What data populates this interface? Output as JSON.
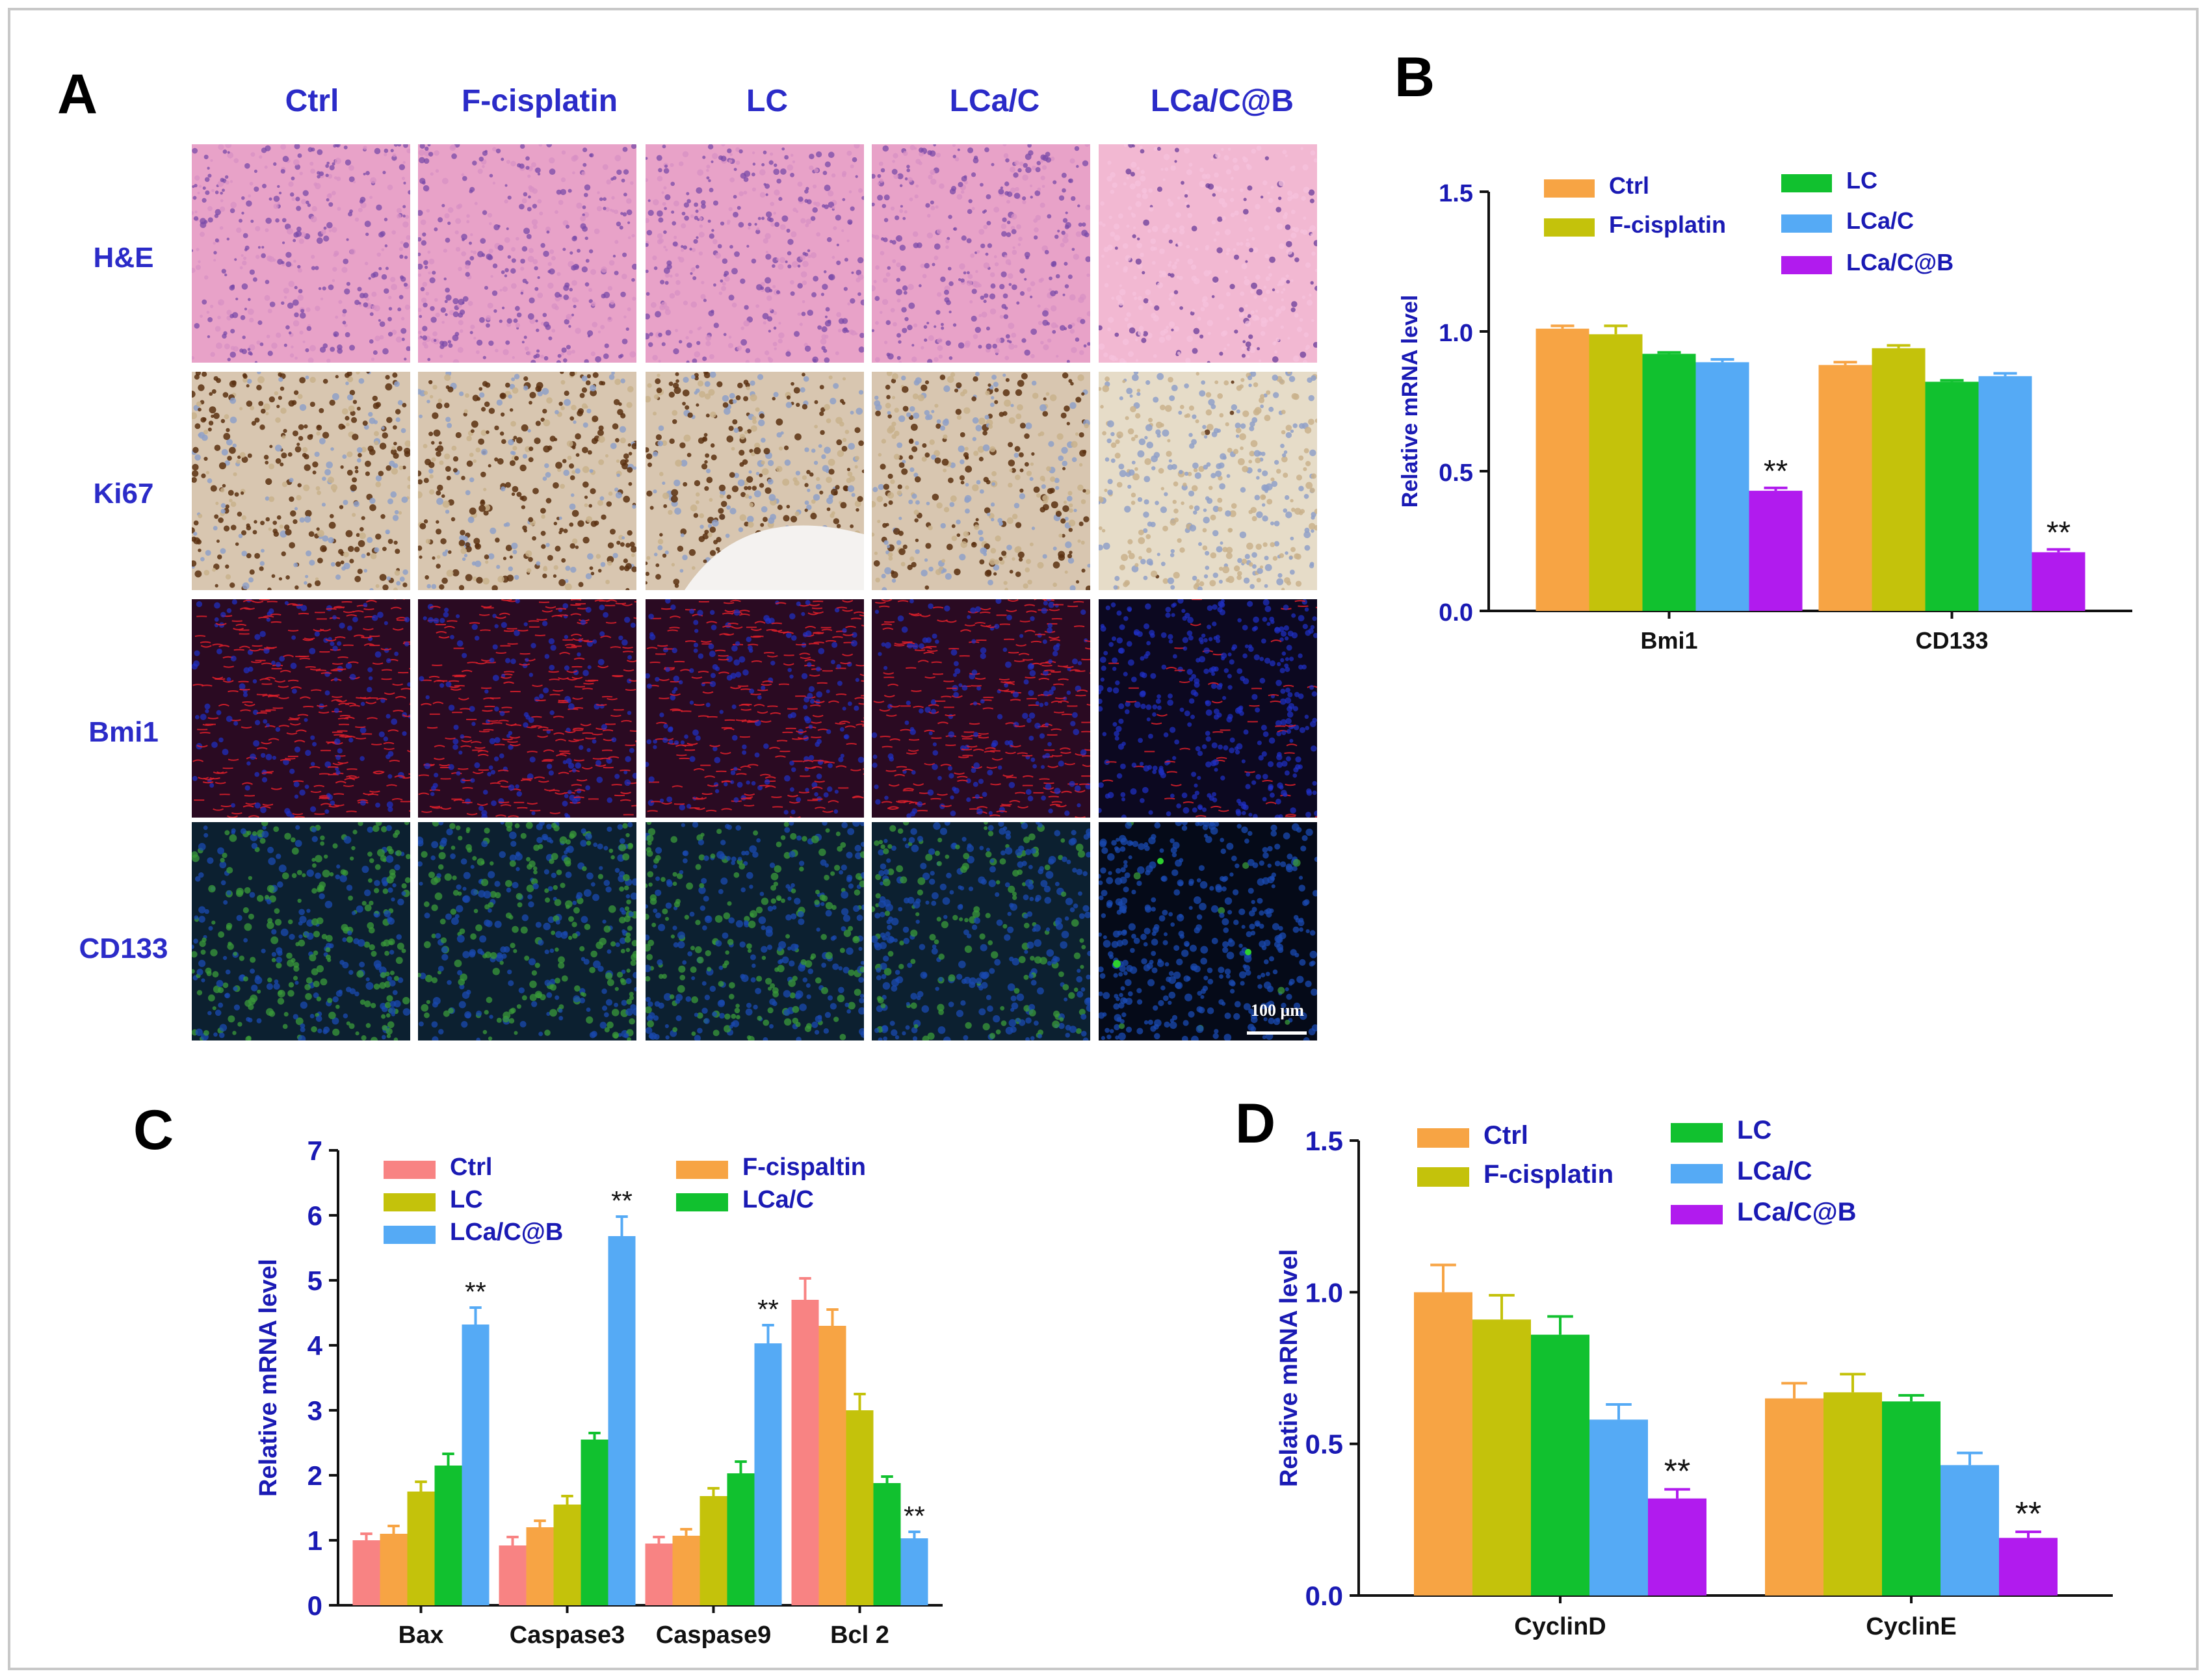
{
  "panel_a": {
    "letter": "A",
    "columns": [
      "Ctrl",
      "F-cisplatin",
      "LC",
      "LCa/C",
      "LCa/C@B"
    ],
    "rows": [
      "H&E",
      "Ki67",
      "Bmi1",
      "CD133"
    ],
    "scale_bar_label": "100 μm"
  },
  "chart_data": [
    {
      "panel": "B",
      "type": "bar",
      "title": "",
      "xlabel": "",
      "ylabel": "Relative mRNA level",
      "ylim": [
        0,
        1.5
      ],
      "yticks": [
        "0.0",
        "0.5",
        "1.0",
        "1.5"
      ],
      "categories": [
        "Bmi1",
        "CD133"
      ],
      "series": [
        {
          "name": "Ctrl",
          "color": "#f7a444",
          "values": [
            1.01,
            0.88
          ],
          "errors": [
            0.01,
            0.01
          ]
        },
        {
          "name": "F-cisplatin",
          "color": "#c4c20b",
          "values": [
            0.99,
            0.94
          ],
          "errors": [
            0.03,
            0.01
          ]
        },
        {
          "name": "LC",
          "color": "#11c12f",
          "values": [
            0.92,
            0.82
          ],
          "errors": [
            0.005,
            0.005
          ]
        },
        {
          "name": "LCa/C",
          "color": "#55aaf5",
          "values": [
            0.89,
            0.84
          ],
          "errors": [
            0.01,
            0.01
          ]
        },
        {
          "name": "LCa/C@B",
          "color": "#b11bee",
          "values": [
            0.43,
            0.21
          ],
          "errors": [
            0.01,
            0.01
          ]
        }
      ],
      "annotations": [
        {
          "category": "Bmi1",
          "series": "LCa/C@B",
          "text": "**"
        },
        {
          "category": "CD133",
          "series": "LCa/C@B",
          "text": "**"
        }
      ]
    },
    {
      "panel": "C",
      "type": "bar",
      "title": "",
      "xlabel": "",
      "ylabel": "Relative mRNA level",
      "ylim": [
        0,
        7
      ],
      "yticks": [
        "0",
        "1",
        "2",
        "3",
        "4",
        "5",
        "6",
        "7"
      ],
      "categories": [
        "Bax",
        "Caspase3",
        "Caspase9",
        "Bcl 2"
      ],
      "series": [
        {
          "name": "Ctrl",
          "color": "#f88383",
          "values": [
            1.0,
            0.92,
            0.95,
            4.7
          ],
          "errors": [
            0.1,
            0.13,
            0.1,
            0.33
          ]
        },
        {
          "name": "F-cispaltin",
          "color": "#f7a444",
          "values": [
            1.1,
            1.2,
            1.07,
            4.3
          ],
          "errors": [
            0.12,
            0.1,
            0.1,
            0.25
          ]
        },
        {
          "name": "LC",
          "color": "#c4c20b",
          "values": [
            1.75,
            1.55,
            1.68,
            3.0
          ],
          "errors": [
            0.15,
            0.13,
            0.12,
            0.25
          ]
        },
        {
          "name": "LCa/C",
          "color": "#11c12f",
          "values": [
            2.15,
            2.55,
            2.03,
            1.88
          ],
          "errors": [
            0.18,
            0.1,
            0.18,
            0.1
          ]
        },
        {
          "name": "LCa/C@B",
          "color": "#55aaf5",
          "values": [
            4.32,
            5.68,
            4.03,
            1.03
          ],
          "errors": [
            0.26,
            0.3,
            0.28,
            0.1
          ]
        }
      ],
      "legend_order": [
        "Ctrl",
        "LC",
        "LCa/C@B",
        "F-cispaltin",
        "LCa/C"
      ],
      "annotations": [
        {
          "category": "Bax",
          "series": "LCa/C@B",
          "text": "**"
        },
        {
          "category": "Caspase3",
          "series": "LCa/C@B",
          "text": "**"
        },
        {
          "category": "Caspase9",
          "series": "LCa/C@B",
          "text": "**"
        },
        {
          "category": "Bcl 2",
          "series": "LCa/C@B",
          "text": "**"
        }
      ]
    },
    {
      "panel": "D",
      "type": "bar",
      "title": "",
      "xlabel": "",
      "ylabel": "Relative mRNA level",
      "ylim": [
        0,
        1.5
      ],
      "yticks": [
        "0.0",
        "0.5",
        "1.0",
        "1.5"
      ],
      "categories": [
        "CyclinD",
        "CyclinE"
      ],
      "series": [
        {
          "name": "Ctrl",
          "color": "#f7a444",
          "values": [
            1.0,
            0.65
          ],
          "errors": [
            0.09,
            0.05
          ]
        },
        {
          "name": "F-cisplatin",
          "color": "#c4c20b",
          "values": [
            0.91,
            0.67
          ],
          "errors": [
            0.08,
            0.06
          ]
        },
        {
          "name": "LC",
          "color": "#11c12f",
          "values": [
            0.86,
            0.64
          ],
          "errors": [
            0.06,
            0.02
          ]
        },
        {
          "name": "LCa/C",
          "color": "#55aaf5",
          "values": [
            0.58,
            0.43
          ],
          "errors": [
            0.05,
            0.04
          ]
        },
        {
          "name": "LCa/C@B",
          "color": "#b11bee",
          "values": [
            0.32,
            0.19
          ],
          "errors": [
            0.03,
            0.02
          ]
        }
      ],
      "annotations": [
        {
          "category": "CyclinD",
          "series": "LCa/C@B",
          "text": "**"
        },
        {
          "category": "CyclinE",
          "series": "LCa/C@B",
          "text": "**"
        }
      ]
    }
  ]
}
